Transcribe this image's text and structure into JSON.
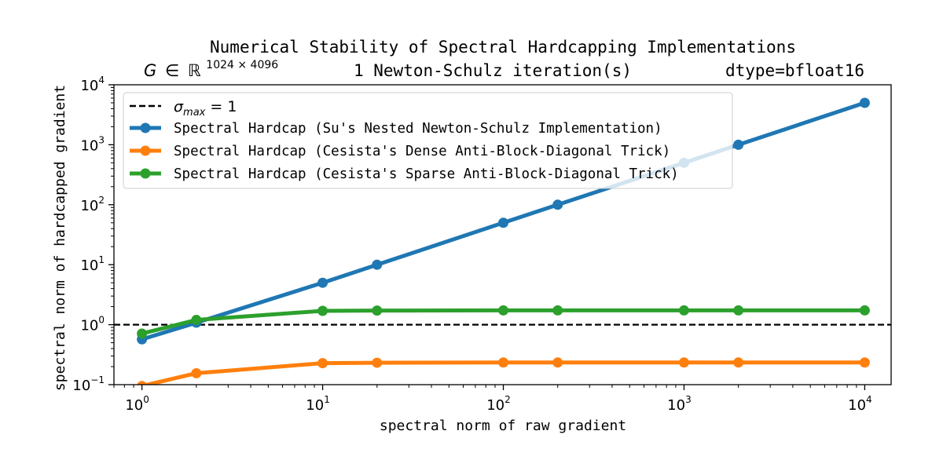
{
  "chart_data": {
    "type": "line",
    "title": "Numerical Stability of Spectral Hardcapping Implementations",
    "subtitle": {
      "matrix_symbol": "G",
      "matrix_member": "∈",
      "matrix_space": "ℝ",
      "matrix_shape": "1024 × 4096",
      "iterations": "1 Newton-Schulz iteration(s)",
      "dtype": "dtype=bfloat16"
    },
    "xlabel": "spectral norm of raw gradient",
    "ylabel": "spectral norm of hardcapped gradient",
    "xscale": "log",
    "yscale": "log",
    "xlim": [
      0.7,
      14000
    ],
    "ylim": [
      0.1,
      10000
    ],
    "grid": false,
    "legend_position": "top-left",
    "x_ticks": [
      {
        "value": 1,
        "base": "10",
        "exp": "0"
      },
      {
        "value": 10,
        "base": "10",
        "exp": "1"
      },
      {
        "value": 100,
        "base": "10",
        "exp": "2"
      },
      {
        "value": 1000,
        "base": "10",
        "exp": "3"
      },
      {
        "value": 10000,
        "base": "10",
        "exp": "4"
      }
    ],
    "y_ticks": [
      {
        "value": 0.1,
        "base": "10",
        "exp": "−1"
      },
      {
        "value": 1,
        "base": "10",
        "exp": "0"
      },
      {
        "value": 10,
        "base": "10",
        "exp": "1"
      },
      {
        "value": 100,
        "base": "10",
        "exp": "2"
      },
      {
        "value": 1000,
        "base": "10",
        "exp": "3"
      },
      {
        "value": 10000,
        "base": "10",
        "exp": "4"
      }
    ],
    "reference_line": {
      "y": 1,
      "symbol": "σ",
      "subscript": "max",
      "suffix": " = 1",
      "color": "#000000",
      "style": "dashed"
    },
    "x": [
      1,
      2,
      10,
      20,
      100,
      200,
      1000,
      2000,
      10000
    ],
    "series": [
      {
        "name": "Spectral Hardcap (Su's Nested Newton-Schulz Implementation)",
        "color": "#1f77b4",
        "values": [
          0.57,
          1.08,
          5,
          10,
          50,
          100,
          500,
          1000,
          5000
        ]
      },
      {
        "name": "Spectral Hardcap (Cesista's Dense Anti-Block-Diagonal Trick)",
        "color": "#ff7f0e",
        "values": [
          0.095,
          0.155,
          0.228,
          0.232,
          0.234,
          0.234,
          0.234,
          0.234,
          0.234
        ]
      },
      {
        "name": "Spectral Hardcap (Cesista's Sparse Anti-Block-Diagonal Trick)",
        "color": "#2ca02c",
        "values": [
          0.71,
          1.2,
          1.7,
          1.72,
          1.73,
          1.73,
          1.73,
          1.73,
          1.73
        ]
      }
    ]
  }
}
